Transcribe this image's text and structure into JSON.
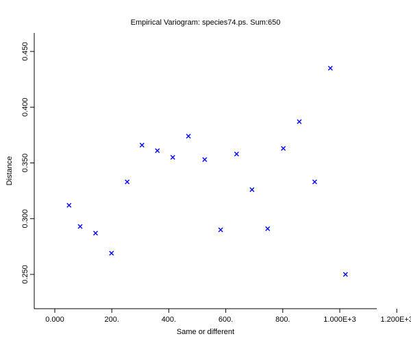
{
  "chart_data": {
    "type": "scatter",
    "title": "Empirical Variogram: species74.ps. Sum:650",
    "xlabel": "Same or different",
    "ylabel": "Distance",
    "xlim": [
      -70,
      1200
    ],
    "ylim": [
      0.216,
      0.465
    ],
    "x_ticks": [
      {
        "value": 0,
        "label": "0.000"
      },
      {
        "value": 200,
        "label": "200."
      },
      {
        "value": 400,
        "label": "400."
      },
      {
        "value": 600,
        "label": "600."
      },
      {
        "value": 800,
        "label": "800."
      },
      {
        "value": 1000,
        "label": "1.000E+3"
      },
      {
        "value": 1200,
        "label": "1.200E+3"
      }
    ],
    "y_ticks": [
      {
        "value": 0.25,
        "label": "0.250"
      },
      {
        "value": 0.3,
        "label": "0.300"
      },
      {
        "value": 0.35,
        "label": "0.350"
      },
      {
        "value": 0.4,
        "label": "0.400"
      },
      {
        "value": 0.45,
        "label": "0.450"
      }
    ],
    "marker": "x",
    "color": "#0000ff",
    "grid": false,
    "series": [
      {
        "points": [
          {
            "x": 50,
            "y": 0.312
          },
          {
            "x": 89,
            "y": 0.293
          },
          {
            "x": 143,
            "y": 0.287
          },
          {
            "x": 199,
            "y": 0.269
          },
          {
            "x": 254,
            "y": 0.333
          },
          {
            "x": 306,
            "y": 0.366
          },
          {
            "x": 360,
            "y": 0.361
          },
          {
            "x": 414,
            "y": 0.355
          },
          {
            "x": 469,
            "y": 0.374
          },
          {
            "x": 526,
            "y": 0.353
          },
          {
            "x": 582,
            "y": 0.29
          },
          {
            "x": 638,
            "y": 0.358
          },
          {
            "x": 692,
            "y": 0.326
          },
          {
            "x": 747,
            "y": 0.291
          },
          {
            "x": 802,
            "y": 0.363
          },
          {
            "x": 858,
            "y": 0.387
          },
          {
            "x": 912,
            "y": 0.333
          },
          {
            "x": 967,
            "y": 0.435
          },
          {
            "x": 1020,
            "y": 0.25
          }
        ]
      }
    ]
  }
}
